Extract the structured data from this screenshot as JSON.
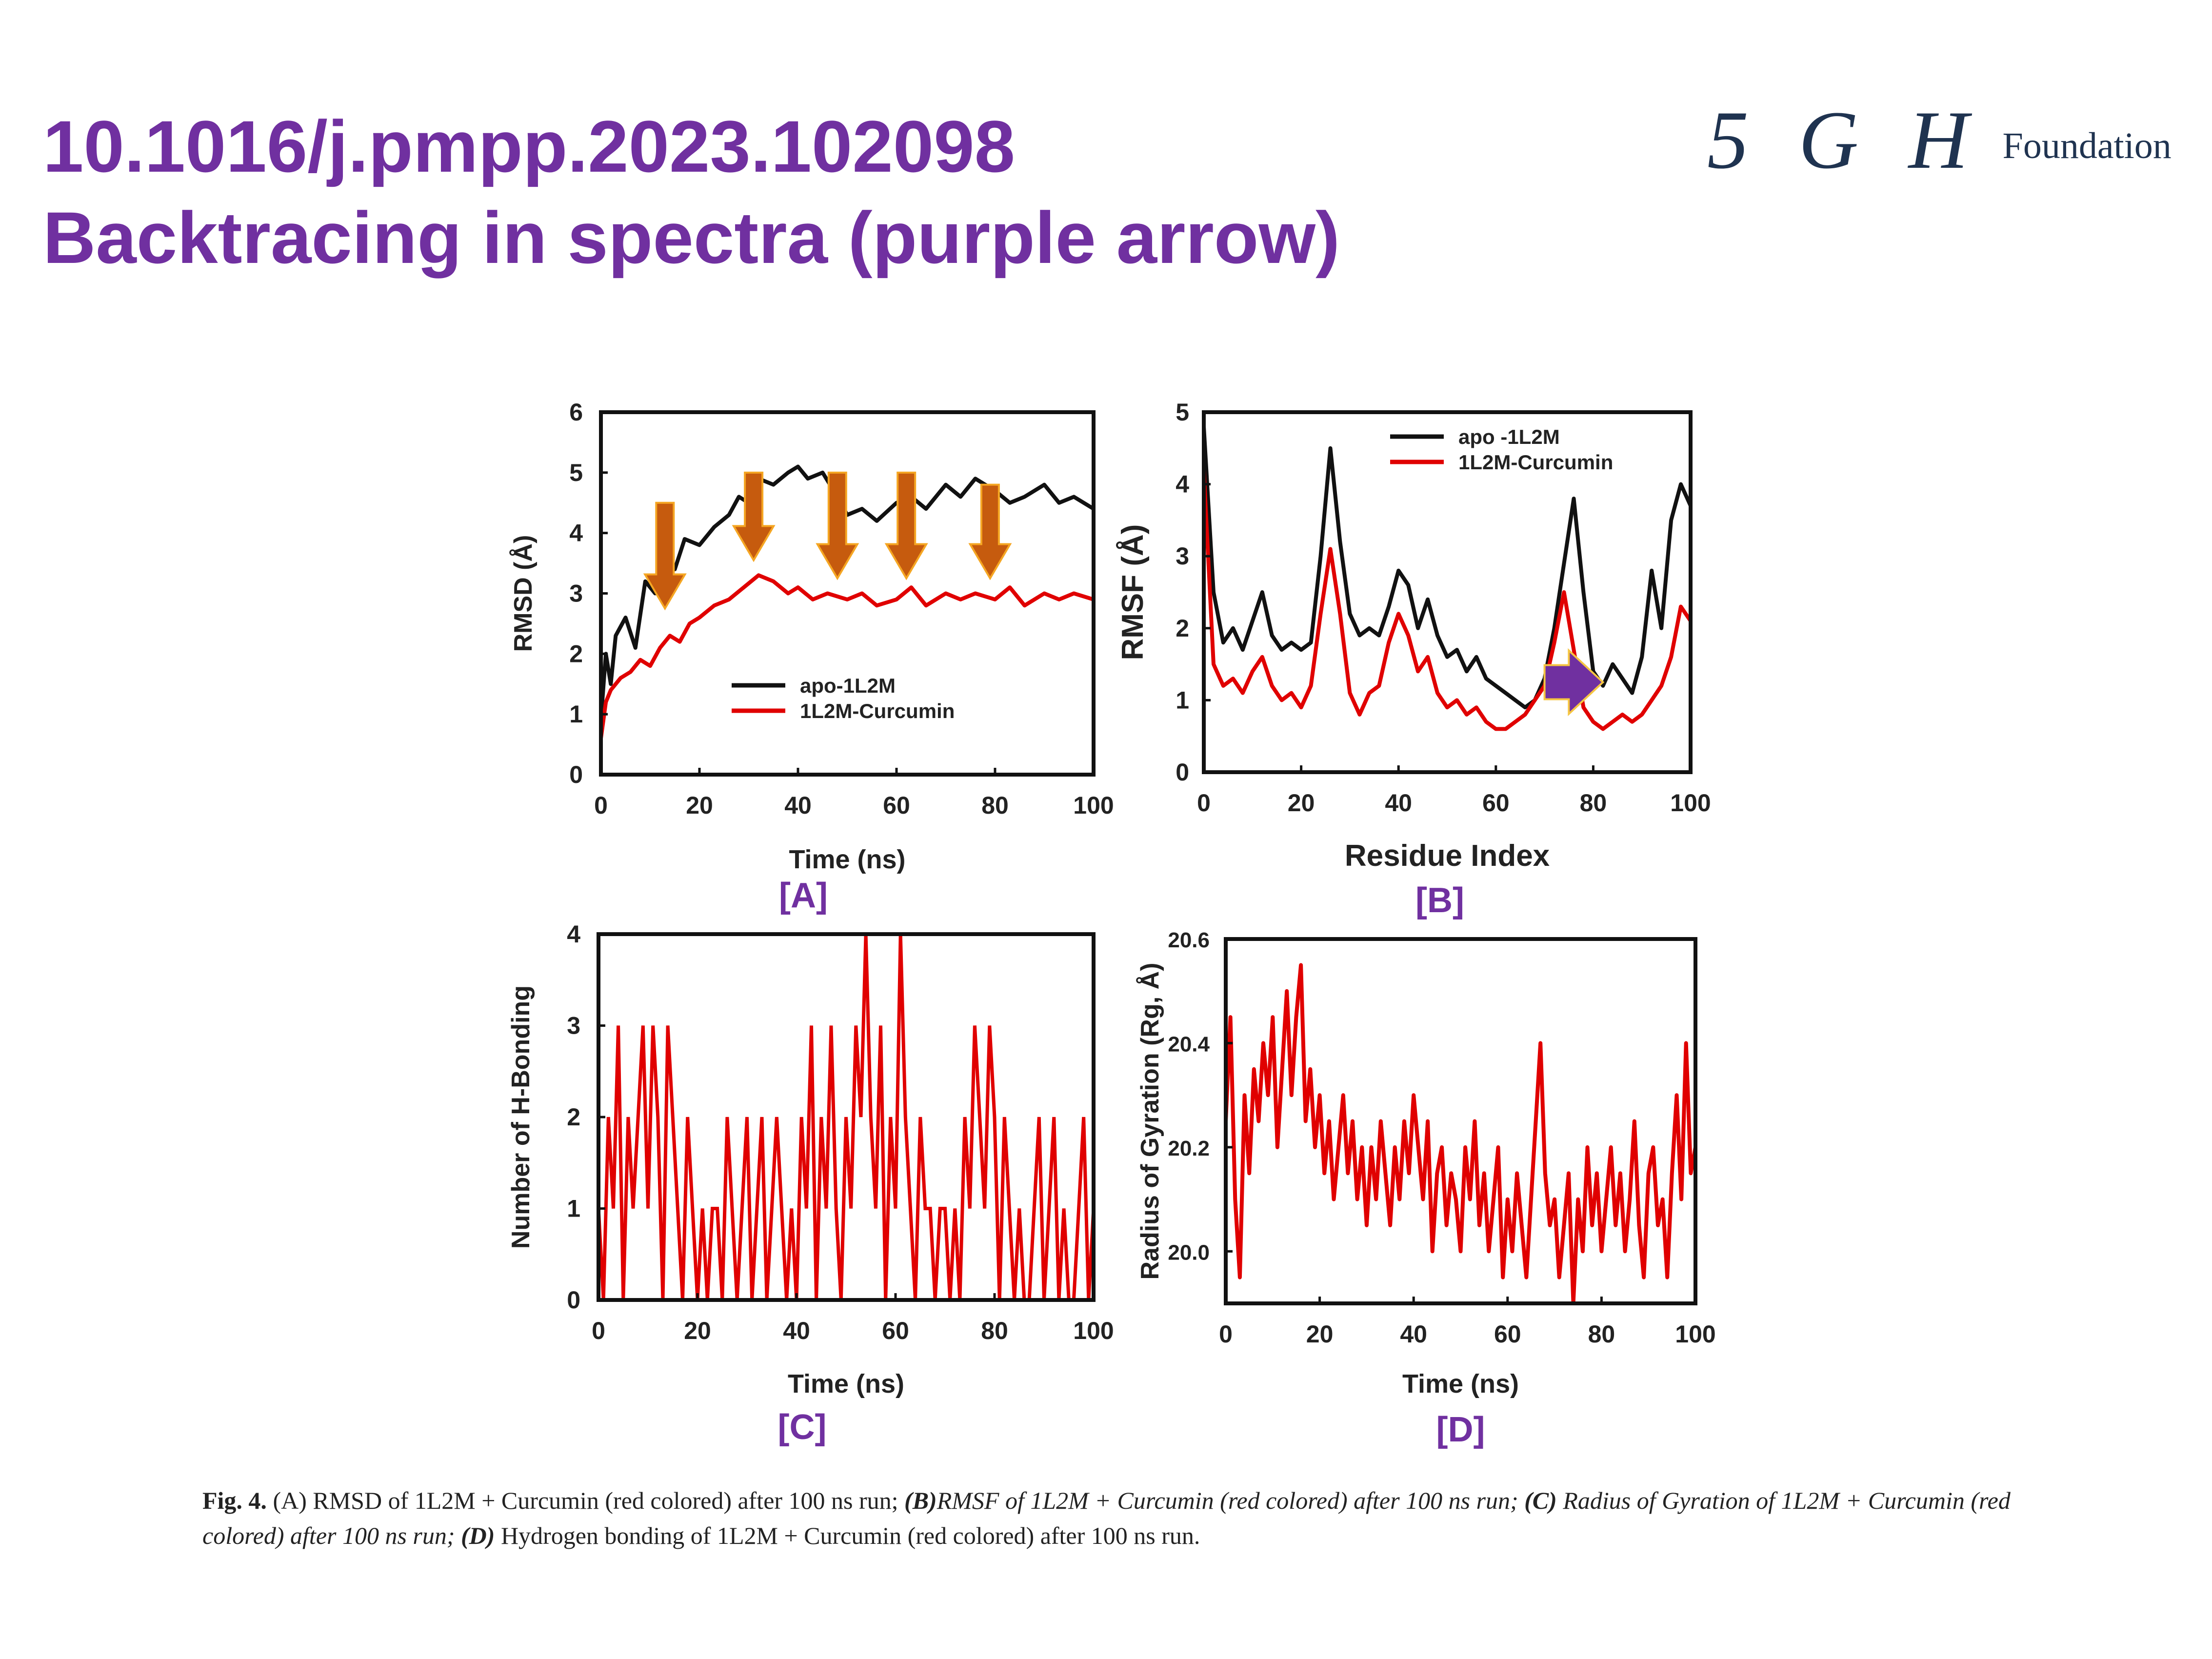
{
  "header": {
    "doi": "10.1016/j.pmpp.2023.102098",
    "subtitle": "Backtracing in spectra (purple arrow)"
  },
  "logo": {
    "mark": "5 G H",
    "word": "Foundation"
  },
  "colors": {
    "title": "#7030a0",
    "black_series": "#111111",
    "red_series": "#e00000",
    "orange_arrow": "#c65b0e",
    "purple_arrow": "#7030a0",
    "panel_label": "#7030a0"
  },
  "caption": {
    "fig": "Fig. 4.",
    "a": "(A) RMSD of 1L2M + Curcumin (red colored) after 100 ns run;",
    "b_label": "(B)",
    "b": "RMSF of 1L2M + Curcumin (red colored) after 100 ns run;",
    "c_label": "(C)",
    "c": "Radius of Gyration of 1L2M + Curcumin (red colored) after 100 ns run;",
    "d_label": "(D)",
    "d": "Hydrogen bonding of 1L2M + Curcumin (red colored) after 100 ns run."
  },
  "chart_data": [
    {
      "id": "A",
      "type": "line",
      "panel_label": "[A]",
      "xlabel": "Time (ns)",
      "ylabel": "RMSD (Å)",
      "xlim": [
        0,
        100
      ],
      "ylim": [
        0,
        6
      ],
      "xticks": [
        "0",
        "20",
        "40",
        "60",
        "80",
        "100"
      ],
      "yticks": [
        "0",
        "1",
        "2",
        "3",
        "4",
        "5",
        "6"
      ],
      "legend_position": "lower-middle",
      "series": [
        {
          "name": "apo-1L2M",
          "color": "#111111",
          "x": [
            0,
            1,
            2,
            3,
            5,
            7,
            9,
            11,
            13,
            15,
            17,
            20,
            23,
            26,
            28,
            30,
            32,
            35,
            38,
            40,
            42,
            45,
            48,
            50,
            53,
            56,
            60,
            63,
            66,
            70,
            73,
            76,
            80,
            83,
            86,
            90,
            93,
            96,
            100
          ],
          "y": [
            0.9,
            2.0,
            1.5,
            2.3,
            2.6,
            2.1,
            3.2,
            3.0,
            3.6,
            3.4,
            3.9,
            3.8,
            4.1,
            4.3,
            4.6,
            4.5,
            4.9,
            4.8,
            5.0,
            5.1,
            4.9,
            5.0,
            4.6,
            4.3,
            4.4,
            4.2,
            4.5,
            4.6,
            4.4,
            4.8,
            4.6,
            4.9,
            4.7,
            4.5,
            4.6,
            4.8,
            4.5,
            4.6,
            4.4
          ]
        },
        {
          "name": "1L2M-Curcumin",
          "color": "#e00000",
          "x": [
            0,
            1,
            2,
            4,
            6,
            8,
            10,
            12,
            14,
            16,
            18,
            20,
            23,
            26,
            29,
            32,
            35,
            38,
            40,
            43,
            46,
            50,
            53,
            56,
            60,
            63,
            66,
            70,
            73,
            76,
            80,
            83,
            86,
            90,
            93,
            96,
            100
          ],
          "y": [
            0.6,
            1.2,
            1.4,
            1.6,
            1.7,
            1.9,
            1.8,
            2.1,
            2.3,
            2.2,
            2.5,
            2.6,
            2.8,
            2.9,
            3.1,
            3.3,
            3.2,
            3.0,
            3.1,
            2.9,
            3.0,
            2.9,
            3.0,
            2.8,
            2.9,
            3.1,
            2.8,
            3.0,
            2.9,
            3.0,
            2.9,
            3.1,
            2.8,
            3.0,
            2.9,
            3.0,
            2.9
          ]
        }
      ],
      "annotations": [
        {
          "type": "down-arrow",
          "color": "#c65b0e",
          "x": 13,
          "y_from": 4.5,
          "y_to": 2.75
        },
        {
          "type": "down-arrow",
          "color": "#c65b0e",
          "x": 31,
          "y_from": 5.0,
          "y_to": 3.55
        },
        {
          "type": "down-arrow",
          "color": "#c65b0e",
          "x": 48,
          "y_from": 5.0,
          "y_to": 3.25
        },
        {
          "type": "down-arrow",
          "color": "#c65b0e",
          "x": 62,
          "y_from": 5.0,
          "y_to": 3.25
        },
        {
          "type": "down-arrow",
          "color": "#c65b0e",
          "x": 79,
          "y_from": 4.8,
          "y_to": 3.25
        }
      ]
    },
    {
      "id": "B",
      "type": "line",
      "panel_label": "[B]",
      "xlabel": "Residue Index",
      "ylabel": "RMSF (Å)",
      "xlim": [
        0,
        100
      ],
      "ylim": [
        0,
        5
      ],
      "xticks": [
        "0",
        "20",
        "40",
        "60",
        "80",
        "100"
      ],
      "yticks": [
        "0",
        "1",
        "2",
        "3",
        "4",
        "5"
      ],
      "legend_position": "top-right",
      "series": [
        {
          "name": "apo -1L2M",
          "color": "#111111",
          "x": [
            0,
            2,
            4,
            6,
            8,
            10,
            12,
            14,
            16,
            18,
            20,
            22,
            24,
            26,
            28,
            30,
            32,
            34,
            36,
            38,
            40,
            42,
            44,
            46,
            48,
            50,
            52,
            54,
            56,
            58,
            60,
            62,
            64,
            66,
            68,
            70,
            72,
            74,
            76,
            78,
            80,
            82,
            84,
            86,
            88,
            90,
            92,
            94,
            96,
            98,
            100
          ],
          "y": [
            4.8,
            2.5,
            1.8,
            2.0,
            1.7,
            2.1,
            2.5,
            1.9,
            1.7,
            1.8,
            1.7,
            1.8,
            3.0,
            4.5,
            3.2,
            2.2,
            1.9,
            2.0,
            1.9,
            2.3,
            2.8,
            2.6,
            2.0,
            2.4,
            1.9,
            1.6,
            1.7,
            1.4,
            1.6,
            1.3,
            1.2,
            1.1,
            1.0,
            0.9,
            1.0,
            1.3,
            2.0,
            2.9,
            3.8,
            2.5,
            1.4,
            1.2,
            1.5,
            1.3,
            1.1,
            1.6,
            2.8,
            2.0,
            3.5,
            4.0,
            3.7
          ]
        },
        {
          "name": "1L2M-Curcumin",
          "color": "#e00000",
          "x": [
            0,
            2,
            4,
            6,
            8,
            10,
            12,
            14,
            16,
            18,
            20,
            22,
            24,
            26,
            28,
            30,
            32,
            34,
            36,
            38,
            40,
            42,
            44,
            46,
            48,
            50,
            52,
            54,
            56,
            58,
            60,
            62,
            64,
            66,
            68,
            70,
            72,
            74,
            76,
            78,
            80,
            82,
            84,
            86,
            88,
            90,
            92,
            94,
            96,
            98,
            100
          ],
          "y": [
            4.2,
            1.5,
            1.2,
            1.3,
            1.1,
            1.4,
            1.6,
            1.2,
            1.0,
            1.1,
            0.9,
            1.2,
            2.2,
            3.1,
            2.2,
            1.1,
            0.8,
            1.1,
            1.2,
            1.8,
            2.2,
            1.9,
            1.4,
            1.6,
            1.1,
            0.9,
            1.0,
            0.8,
            0.9,
            0.7,
            0.6,
            0.6,
            0.7,
            0.8,
            1.0,
            1.2,
            1.8,
            2.5,
            1.7,
            0.9,
            0.7,
            0.6,
            0.7,
            0.8,
            0.7,
            0.8,
            1.0,
            1.2,
            1.6,
            2.3,
            2.1
          ]
        }
      ],
      "annotations": [
        {
          "type": "right-arrow",
          "color": "#7030a0",
          "x_from": 70,
          "x_to": 82,
          "y": 1.25
        }
      ]
    },
    {
      "id": "C",
      "type": "line",
      "panel_label": "[C]",
      "xlabel": "Time (ns)",
      "ylabel": "Number of H-Bonding",
      "xlim": [
        0,
        100
      ],
      "ylim": [
        0,
        4
      ],
      "xticks": [
        "0",
        "20",
        "40",
        "60",
        "80",
        "100"
      ],
      "yticks": [
        "0",
        "1",
        "2",
        "3",
        "4"
      ],
      "series": [
        {
          "name": "1L2M-Curcumin",
          "color": "#e00000",
          "x": [
            0,
            1,
            2,
            3,
            4,
            5,
            6,
            7,
            8,
            9,
            10,
            11,
            12,
            13,
            14,
            15,
            16,
            17,
            18,
            19,
            20,
            21,
            22,
            23,
            24,
            25,
            26,
            27,
            28,
            29,
            30,
            31,
            32,
            33,
            34,
            35,
            36,
            37,
            38,
            39,
            40,
            41,
            42,
            43,
            44,
            45,
            46,
            47,
            48,
            49,
            50,
            51,
            52,
            53,
            54,
            55,
            56,
            57,
            58,
            59,
            60,
            61,
            62,
            63,
            64,
            65,
            66,
            67,
            68,
            69,
            70,
            71,
            72,
            73,
            74,
            75,
            76,
            77,
            78,
            79,
            80,
            81,
            82,
            83,
            84,
            85,
            86,
            87,
            88,
            89,
            90,
            91,
            92,
            93,
            94,
            95,
            96,
            97,
            98,
            99,
            100
          ],
          "y": [
            1,
            0,
            2,
            1,
            3,
            0,
            2,
            1,
            2,
            3,
            1,
            3,
            2,
            0,
            3,
            2,
            1,
            0,
            2,
            1,
            0,
            1,
            0,
            1,
            1,
            0,
            2,
            1,
            0,
            1,
            2,
            0,
            1,
            2,
            0,
            1,
            2,
            1,
            0,
            1,
            0,
            2,
            1,
            3,
            0,
            2,
            1,
            3,
            1,
            0,
            2,
            1,
            3,
            2,
            4,
            2,
            1,
            3,
            0,
            2,
            1,
            4,
            2,
            1,
            0,
            2,
            1,
            1,
            0,
            1,
            1,
            0,
            1,
            0,
            2,
            1,
            3,
            2,
            1,
            3,
            2,
            0,
            2,
            1,
            0,
            1,
            0,
            0,
            1,
            2,
            0,
            1,
            2,
            0,
            1,
            0,
            0,
            1,
            2,
            0,
            1
          ]
        }
      ]
    },
    {
      "id": "D",
      "type": "line",
      "panel_label": "[D]",
      "xlabel": "Time (ns)",
      "ylabel": "Radius of Gyration (Rg, Å)",
      "xlim": [
        0,
        100
      ],
      "ylim": [
        19.9,
        20.6
      ],
      "xticks": [
        "0",
        "20",
        "40",
        "60",
        "80",
        "100"
      ],
      "yticks": [
        "20.0",
        "20.2",
        "20.4",
        "20.6"
      ],
      "ytick_values": [
        20.0,
        20.2,
        20.4,
        20.6
      ],
      "series": [
        {
          "name": "1L2M-Curcumin",
          "color": "#e00000",
          "x": [
            0,
            1,
            2,
            3,
            4,
            5,
            6,
            7,
            8,
            9,
            10,
            11,
            12,
            13,
            14,
            15,
            16,
            17,
            18,
            19,
            20,
            21,
            22,
            23,
            24,
            25,
            26,
            27,
            28,
            29,
            30,
            31,
            32,
            33,
            34,
            35,
            36,
            37,
            38,
            39,
            40,
            41,
            42,
            43,
            44,
            45,
            46,
            47,
            48,
            49,
            50,
            51,
            52,
            53,
            54,
            55,
            56,
            57,
            58,
            59,
            60,
            61,
            62,
            63,
            64,
            65,
            66,
            67,
            68,
            69,
            70,
            71,
            72,
            73,
            74,
            75,
            76,
            77,
            78,
            79,
            80,
            81,
            82,
            83,
            84,
            85,
            86,
            87,
            88,
            89,
            90,
            91,
            92,
            93,
            94,
            95,
            96,
            97,
            98,
            99,
            100
          ],
          "y": [
            20.25,
            20.45,
            20.1,
            19.95,
            20.3,
            20.15,
            20.35,
            20.25,
            20.4,
            20.3,
            20.45,
            20.2,
            20.35,
            20.5,
            20.3,
            20.45,
            20.55,
            20.25,
            20.35,
            20.2,
            20.3,
            20.15,
            20.25,
            20.1,
            20.2,
            20.3,
            20.15,
            20.25,
            20.1,
            20.2,
            20.05,
            20.2,
            20.1,
            20.25,
            20.15,
            20.05,
            20.2,
            20.1,
            20.25,
            20.15,
            20.3,
            20.2,
            20.1,
            20.25,
            20.0,
            20.15,
            20.2,
            20.05,
            20.15,
            20.1,
            20.0,
            20.2,
            20.1,
            20.25,
            20.05,
            20.15,
            20.0,
            20.1,
            20.2,
            19.95,
            20.1,
            20.0,
            20.15,
            20.05,
            19.95,
            20.1,
            20.25,
            20.4,
            20.15,
            20.05,
            20.1,
            19.95,
            20.05,
            20.15,
            19.9,
            20.1,
            20.0,
            20.2,
            20.05,
            20.15,
            20.0,
            20.1,
            20.2,
            20.05,
            20.15,
            20.0,
            20.1,
            20.25,
            20.05,
            19.95,
            20.15,
            20.2,
            20.05,
            20.1,
            19.95,
            20.15,
            20.3,
            20.1,
            20.4,
            20.15,
            20.2
          ]
        }
      ]
    }
  ]
}
